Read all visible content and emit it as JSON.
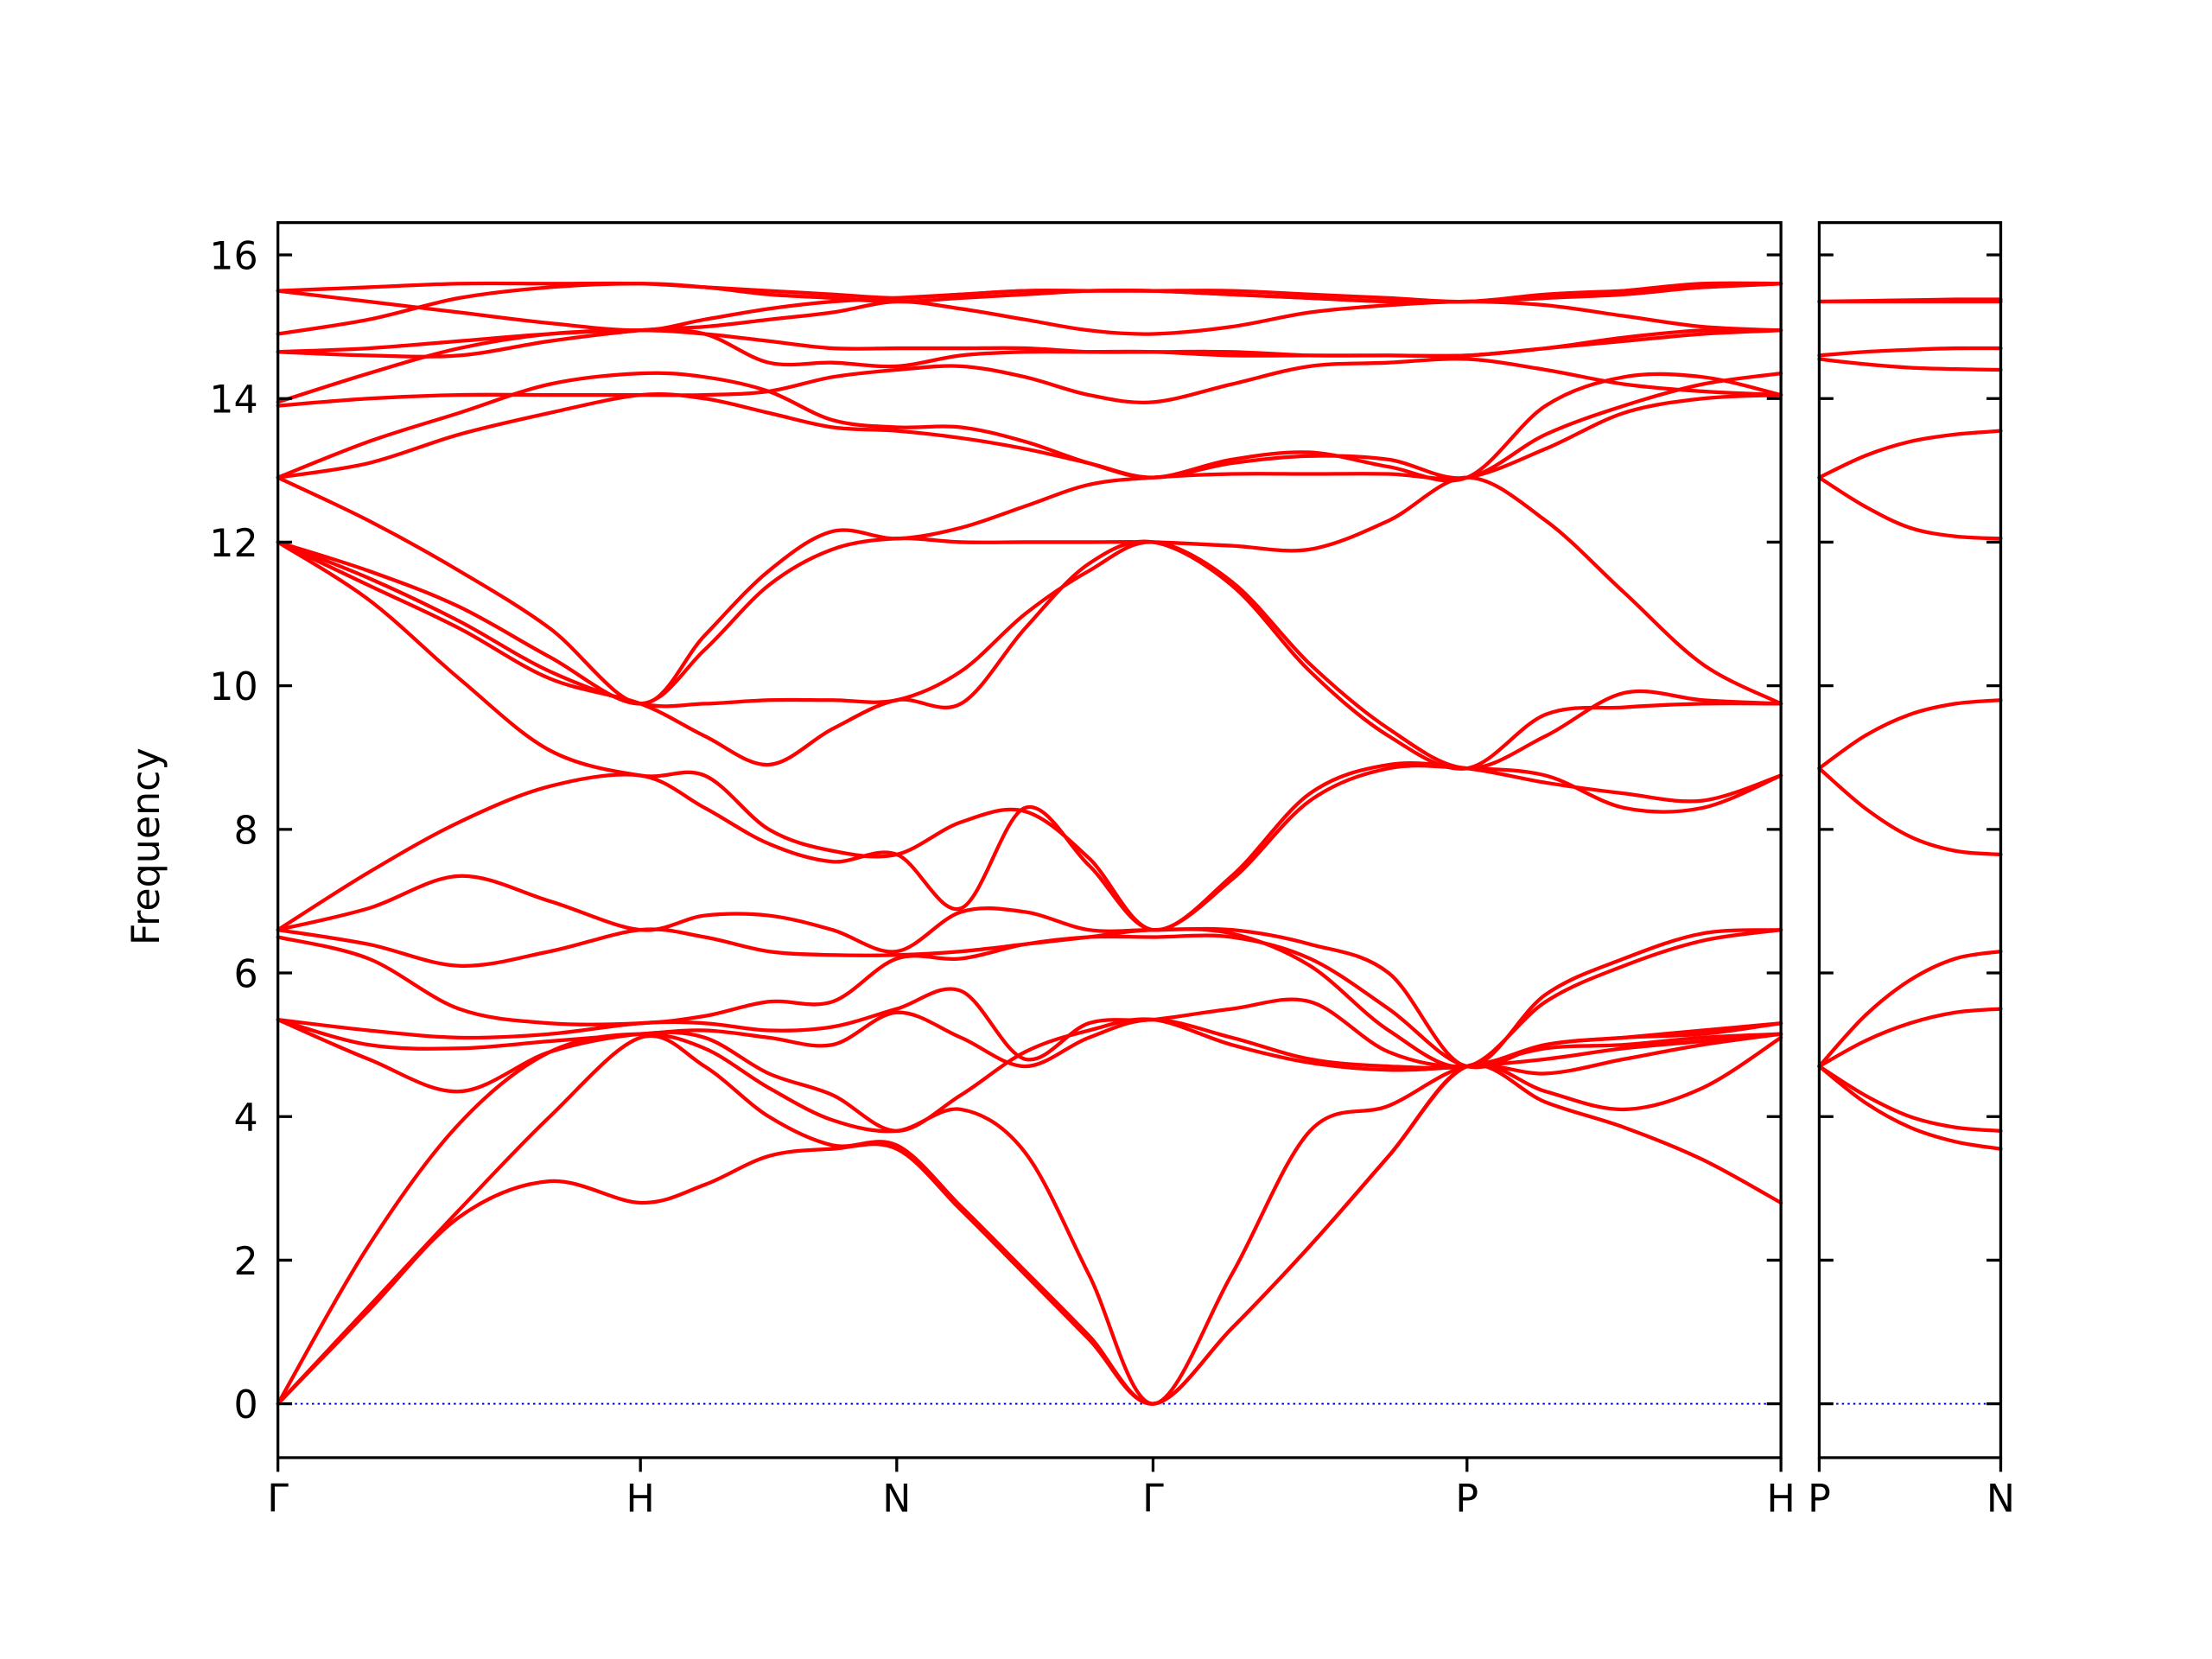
{
  "chart_data": [
    {
      "type": "line",
      "ylabel": "Frequency",
      "color": "#ff0000",
      "zero_line": true,
      "zero_line_color": "#0000cc",
      "xlim": [
        0,
        4.146
      ],
      "ylim": [
        -0.75,
        16.45
      ],
      "xticks": [
        {
          "value": 0,
          "label": "Γ"
        },
        {
          "value": 1,
          "label": "H"
        },
        {
          "value": 1.707,
          "label": "N"
        },
        {
          "value": 2.414,
          "label": "Γ"
        },
        {
          "value": 3.28,
          "label": "P"
        },
        {
          "value": 4.146,
          "label": "H"
        }
      ],
      "yticks": [
        0,
        2,
        4,
        6,
        8,
        10,
        12,
        14,
        16
      ],
      "x": [
        0,
        0.25,
        0.5,
        0.75,
        1,
        1.177,
        1.354,
        1.53,
        1.707,
        1.884,
        2.061,
        2.237,
        2.414,
        2.631,
        2.847,
        3.064,
        3.28,
        3.497,
        3.713,
        3.93,
        4.146
      ],
      "series": [
        {
          "values": [
            0,
            1.3,
            2.6,
            3.1,
            2.8,
            3.05,
            3.45,
            3.55,
            3.55,
            2.7,
            1.8,
            0.9,
            0,
            1.05,
            2.2,
            3.45,
            4.7,
            4.2,
            3.85,
            3.4,
            2.8
          ]
        },
        {
          "values": [
            0,
            1.35,
            2.7,
            4.0,
            5.1,
            4.7,
            4.0,
            3.6,
            3.6,
            2.75,
            1.85,
            0.95,
            0,
            1.05,
            2.2,
            3.45,
            4.7,
            4.35,
            4.1,
            4.4,
            5.1
          ]
        },
        {
          "values": [
            0,
            2.2,
            3.9,
            4.9,
            5.15,
            4.95,
            4.4,
            3.95,
            3.8,
            4.1,
            3.5,
            1.8,
            0,
            1.8,
            3.8,
            4.15,
            4.7,
            4.6,
            4.8,
            5.0,
            5.15
          ]
        },
        {
          "values": [
            5.35,
            4.8,
            4.35,
            4.9,
            5.15,
            5.1,
            4.6,
            4.3,
            3.8,
            4.3,
            4.9,
            5.2,
            5.35,
            5.0,
            4.75,
            4.65,
            4.7,
            4.8,
            4.95,
            5.05,
            5.15
          ]
        },
        {
          "values": [
            5.35,
            5.0,
            4.95,
            5.05,
            5.15,
            5.2,
            5.1,
            5.0,
            5.45,
            5.1,
            4.7,
            5.1,
            5.35,
            5.1,
            4.8,
            4.7,
            4.7,
            4.95,
            5.0,
            5.1,
            5.15
          ]
        },
        {
          "values": [
            5.35,
            5.2,
            5.1,
            5.15,
            5.3,
            5.3,
            5.2,
            5.25,
            5.5,
            5.75,
            4.8,
            5.3,
            5.35,
            5.5,
            5.6,
            4.9,
            4.7,
            5.0,
            5.1,
            5.15,
            5.3
          ]
        },
        {
          "values": [
            6.5,
            6.2,
            5.5,
            5.3,
            5.3,
            5.4,
            5.6,
            5.6,
            6.2,
            6.2,
            6.4,
            6.5,
            6.5,
            6.5,
            6.2,
            5.5,
            4.7,
            5.0,
            5.1,
            5.2,
            5.3
          ]
        },
        {
          "values": [
            6.6,
            6.4,
            6.1,
            6.3,
            6.6,
            6.5,
            6.3,
            6.25,
            6.25,
            6.3,
            6.4,
            6.5,
            6.6,
            6.55,
            6.1,
            5.2,
            4.7,
            5.6,
            6.1,
            6.45,
            6.6
          ]
        },
        {
          "values": [
            6.6,
            6.9,
            7.35,
            7.0,
            6.6,
            6.8,
            6.8,
            6.6,
            6.3,
            6.85,
            6.85,
            6.6,
            6.6,
            6.6,
            6.4,
            6.0,
            4.7,
            5.7,
            6.2,
            6.55,
            6.6
          ]
        },
        {
          "values": [
            6.6,
            7.4,
            8.1,
            8.6,
            8.75,
            8.3,
            7.8,
            7.55,
            7.65,
            6.9,
            8.3,
            7.5,
            6.6,
            7.3,
            8.4,
            8.85,
            8.85,
            8.75,
            8.3,
            8.3,
            8.75
          ]
        },
        {
          "values": [
            12.0,
            11.2,
            10.1,
            9.1,
            8.75,
            8.75,
            8.0,
            7.7,
            7.65,
            8.1,
            8.25,
            7.6,
            6.6,
            7.35,
            8.5,
            8.9,
            8.85,
            8.65,
            8.5,
            8.4,
            8.75
          ]
        },
        {
          "values": [
            12.0,
            11.4,
            10.8,
            10.1,
            9.75,
            9.3,
            8.9,
            9.4,
            9.8,
            9.75,
            10.8,
            11.7,
            12.0,
            11.4,
            10.2,
            9.3,
            8.85,
            9.6,
            9.7,
            9.75,
            9.75
          ]
        },
        {
          "values": [
            12.0,
            11.5,
            10.9,
            10.2,
            9.75,
            9.75,
            9.8,
            9.8,
            9.8,
            10.2,
            11.0,
            11.6,
            12.0,
            11.45,
            10.3,
            9.4,
            8.85,
            9.3,
            9.9,
            9.8,
            9.75
          ]
        },
        {
          "values": [
            12.0,
            11.6,
            11.1,
            10.4,
            9.75,
            10.5,
            11.4,
            11.9,
            12.05,
            12.0,
            12.0,
            12.0,
            12.0,
            11.95,
            11.9,
            12.3,
            12.9,
            12.3,
            11.3,
            10.3,
            9.75
          ]
        },
        {
          "values": [
            12.9,
            12.3,
            11.6,
            10.8,
            9.75,
            10.7,
            11.6,
            12.15,
            12.05,
            12.2,
            12.5,
            12.8,
            12.9,
            12.95,
            12.95,
            12.95,
            12.9,
            13.3,
            13.8,
            14.0,
            14.05
          ]
        },
        {
          "values": [
            12.9,
            13.1,
            13.5,
            13.8,
            14.05,
            14.0,
            13.8,
            13.6,
            13.55,
            13.45,
            13.3,
            13.1,
            12.9,
            13.1,
            13.2,
            13.15,
            12.9,
            13.5,
            13.9,
            14.2,
            14.35
          ]
        },
        {
          "values": [
            12.9,
            13.4,
            13.8,
            14.2,
            14.35,
            14.3,
            14.1,
            13.7,
            13.6,
            13.6,
            13.4,
            13.1,
            12.9,
            13.15,
            13.25,
            13.05,
            12.9,
            13.9,
            14.3,
            14.3,
            14.05
          ]
        },
        {
          "values": [
            13.9,
            14.0,
            14.05,
            14.05,
            14.05,
            14.05,
            14.1,
            14.3,
            14.4,
            14.45,
            14.3,
            14.05,
            13.95,
            14.2,
            14.45,
            14.5,
            14.55,
            14.4,
            14.2,
            14.1,
            14.05
          ]
        },
        {
          "values": [
            13.95,
            14.35,
            14.7,
            14.9,
            14.95,
            14.9,
            14.5,
            14.5,
            14.45,
            14.6,
            14.65,
            14.65,
            14.65,
            14.6,
            14.6,
            14.6,
            14.6,
            14.7,
            14.8,
            14.9,
            14.95
          ]
        },
        {
          "values": [
            14.65,
            14.7,
            14.8,
            14.9,
            14.95,
            14.9,
            14.8,
            14.7,
            14.7,
            14.7,
            14.7,
            14.65,
            14.65,
            14.65,
            14.6,
            14.6,
            14.6,
            14.7,
            14.85,
            14.95,
            14.95
          ]
        },
        {
          "values": [
            14.65,
            14.6,
            14.6,
            14.8,
            14.95,
            15.0,
            15.1,
            15.2,
            15.35,
            15.25,
            15.1,
            14.95,
            14.9,
            15.0,
            15.2,
            15.3,
            15.35,
            15.3,
            15.15,
            15.0,
            14.95
          ]
        },
        {
          "values": [
            14.9,
            15.1,
            15.4,
            15.55,
            15.6,
            15.55,
            15.45,
            15.4,
            15.35,
            15.4,
            15.45,
            15.5,
            15.5,
            15.45,
            15.4,
            15.35,
            15.35,
            15.4,
            15.5,
            15.6,
            15.6
          ]
        },
        {
          "values": [
            15.5,
            15.35,
            15.2,
            15.05,
            14.95,
            15.1,
            15.25,
            15.35,
            15.4,
            15.45,
            15.5,
            15.5,
            15.5,
            15.45,
            15.4,
            15.35,
            15.35,
            15.4,
            15.45,
            15.55,
            15.6
          ]
        },
        {
          "values": [
            15.5,
            15.55,
            15.6,
            15.6,
            15.6,
            15.55,
            15.5,
            15.45,
            15.4,
            15.45,
            15.5,
            15.5,
            15.5,
            15.5,
            15.45,
            15.4,
            15.35,
            15.45,
            15.5,
            15.55,
            15.6
          ]
        }
      ]
    },
    {
      "type": "line",
      "color": "#ff0000",
      "zero_line": true,
      "zero_line_color": "#0000cc",
      "ytick_labels": false,
      "xlim": [
        0,
        0.5
      ],
      "ylim": [
        -0.75,
        16.45
      ],
      "xticks": [
        {
          "value": 0,
          "label": "P"
        },
        {
          "value": 0.5,
          "label": "N"
        }
      ],
      "yticks": [
        0,
        2,
        4,
        6,
        8,
        10,
        12,
        14,
        16
      ],
      "x": [
        0,
        0.125,
        0.25,
        0.375,
        0.5
      ],
      "series": [
        {
          "values": [
            4.7,
            4.2,
            3.85,
            3.65,
            3.55
          ]
        },
        {
          "values": [
            4.7,
            4.3,
            4.0,
            3.85,
            3.8
          ]
        },
        {
          "values": [
            4.7,
            5.05,
            5.3,
            5.45,
            5.5
          ]
        },
        {
          "values": [
            4.7,
            5.4,
            5.9,
            6.2,
            6.3
          ]
        },
        {
          "values": [
            8.85,
            8.3,
            7.9,
            7.7,
            7.65
          ]
        },
        {
          "values": [
            8.85,
            9.3,
            9.6,
            9.75,
            9.8
          ]
        },
        {
          "values": [
            12.9,
            12.5,
            12.2,
            12.08,
            12.05
          ]
        },
        {
          "values": [
            12.9,
            13.2,
            13.4,
            13.5,
            13.55
          ]
        },
        {
          "values": [
            14.55,
            14.48,
            14.43,
            14.41,
            14.4
          ]
        },
        {
          "values": [
            14.6,
            14.65,
            14.68,
            14.7,
            14.7
          ]
        },
        {
          "values": [
            15.35,
            15.36,
            15.37,
            15.38,
            15.38
          ]
        },
        {
          "values": [
            15.35,
            15.35,
            15.35,
            15.35,
            15.35
          ]
        }
      ]
    }
  ]
}
